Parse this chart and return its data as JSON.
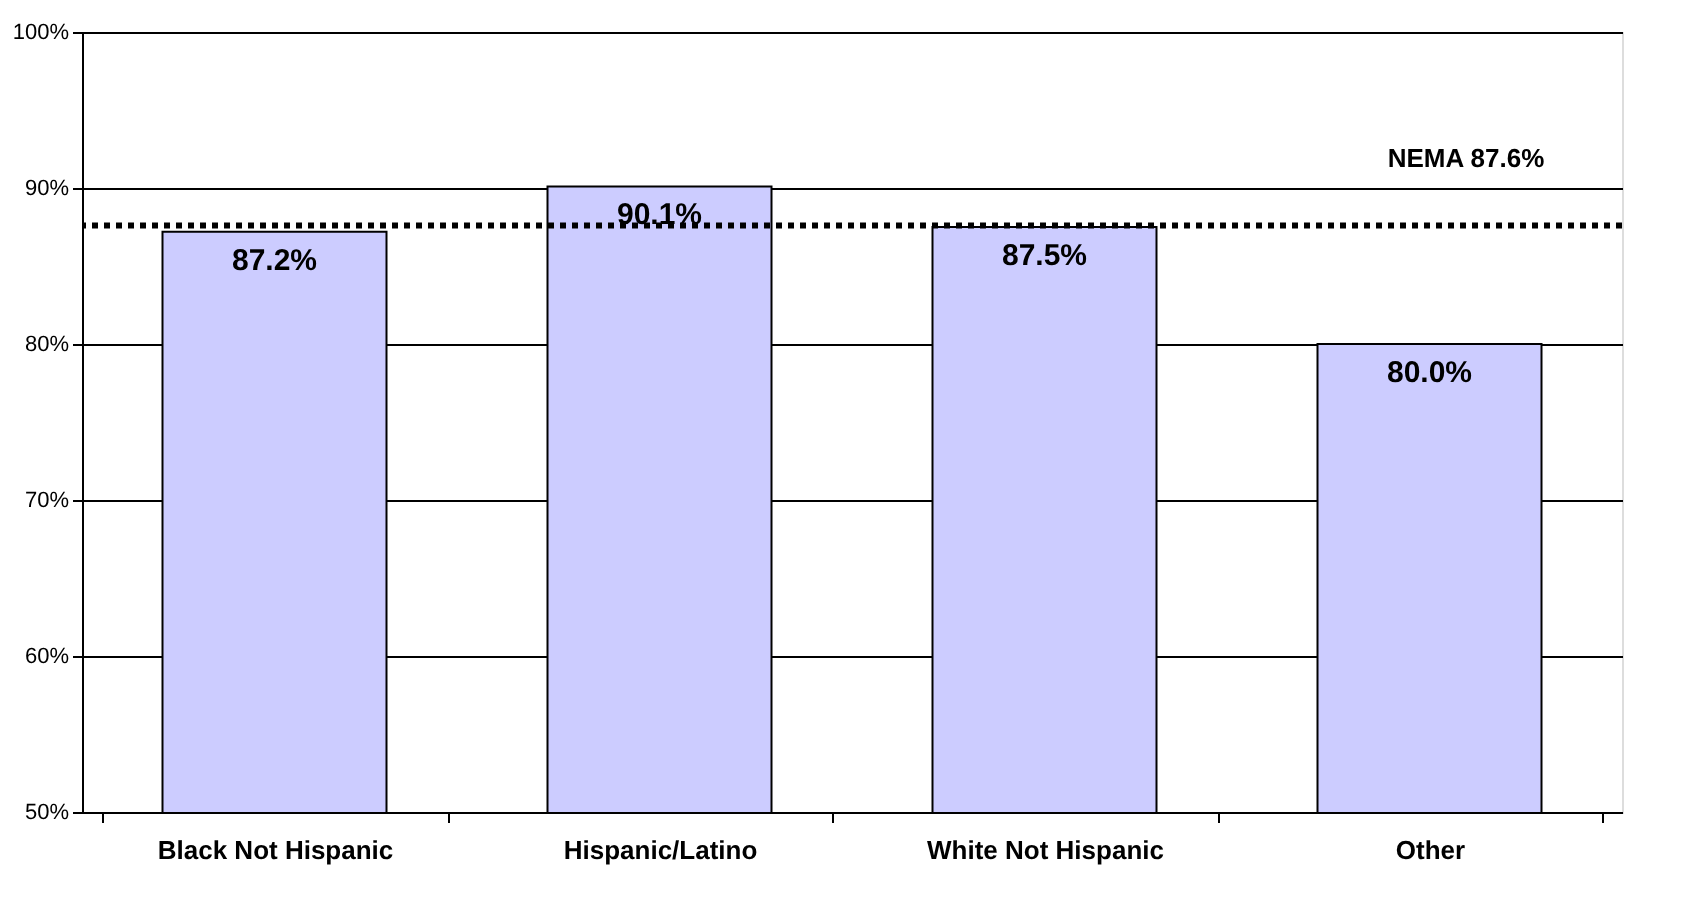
{
  "chart_data": {
    "type": "bar",
    "categories": [
      "Black Not Hispanic",
      "Hispanic/Latino",
      "White Not Hispanic",
      "Other"
    ],
    "values": [
      87.2,
      90.1,
      87.5,
      80.0
    ],
    "color": "#ccccff",
    "data_labels": true,
    "value_labels": [
      "87.2%",
      "90.1%",
      "87.5%",
      "80.0%"
    ],
    "ylim": [
      50,
      100
    ],
    "yticks": [
      {
        "value": 50,
        "label": "50%"
      },
      {
        "value": 60,
        "label": "60%"
      },
      {
        "value": 70,
        "label": "70%"
      },
      {
        "value": 80,
        "label": "80%"
      },
      {
        "value": 90,
        "label": "90%"
      },
      {
        "value": 100,
        "label": "100%"
      }
    ],
    "grid": "y",
    "legend": false,
    "ref_lines": [
      {
        "axis": "y",
        "value": 87.6,
        "label": "NEMA 87.6%",
        "color": "#000000",
        "line_style": "dotted"
      }
    ]
  }
}
